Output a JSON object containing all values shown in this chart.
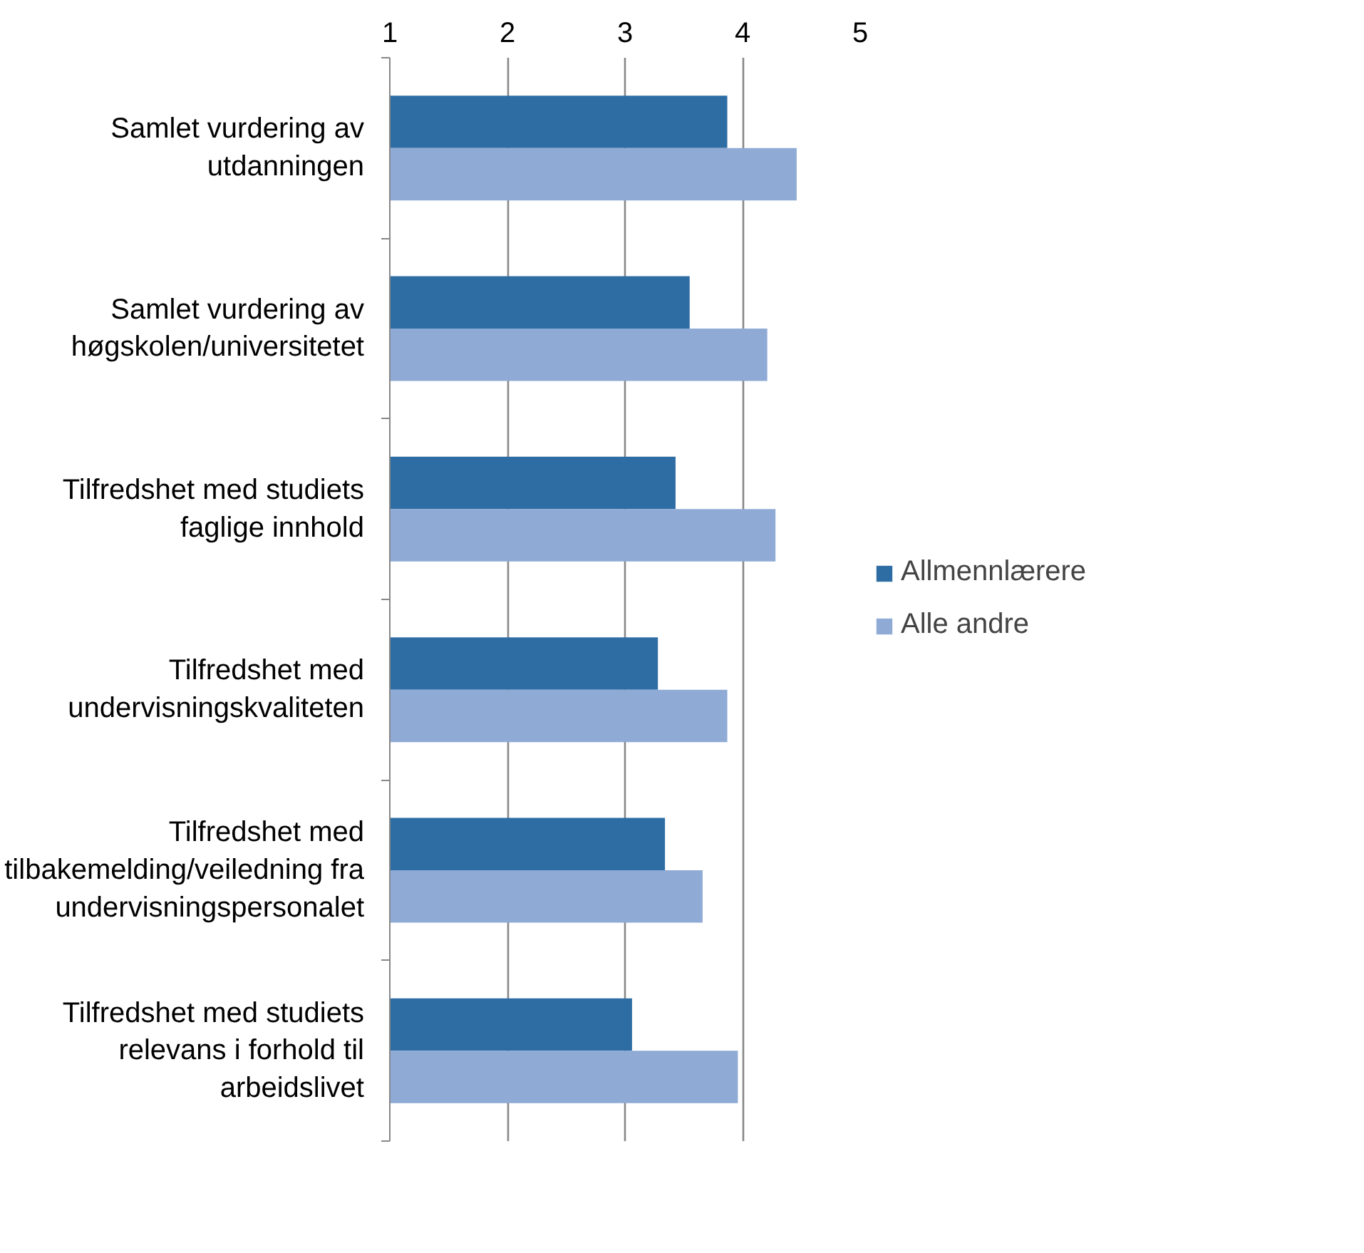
{
  "chart_data": {
    "type": "bar",
    "orientation": "horizontal",
    "categories": [
      "Samlet vurdering av utdanningen",
      "Samlet vurdering av høgskolen/universitetet",
      "Tilfredshet med studiets faglige innhold",
      "Tilfredshet med undervisningskvaliteten",
      "Tilfredshet med tilbakemelding/veiledning fra undervisningspersonalet",
      "Tilfredshet med studiets relevans i forhold til arbeidslivet"
    ],
    "series": [
      {
        "name": "Allmennlærere",
        "color": "#2e6da4",
        "values": [
          3.87,
          3.55,
          3.43,
          3.28,
          3.34,
          3.06
        ]
      },
      {
        "name": "Alle andre",
        "color": "#8eaad5",
        "values": [
          4.46,
          4.21,
          4.28,
          3.87,
          3.66,
          3.96
        ]
      }
    ],
    "xlim": [
      1,
      5
    ],
    "xticks": [
      1,
      2,
      3,
      4,
      5
    ],
    "grid": "x",
    "legend": "right"
  }
}
